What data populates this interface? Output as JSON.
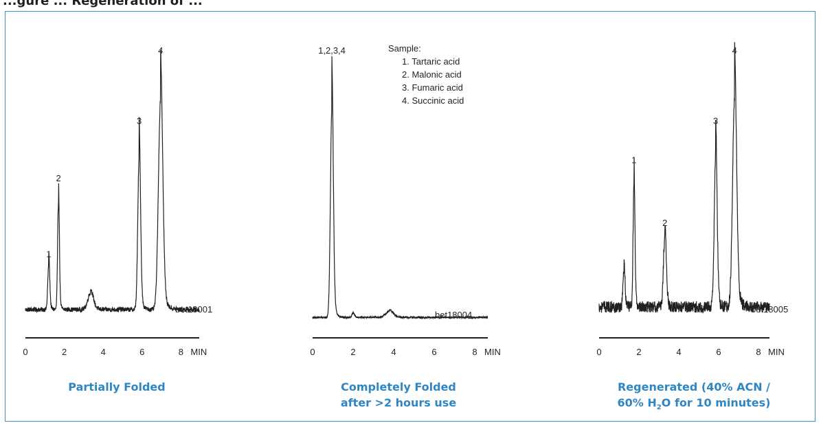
{
  "header_partial": "...gure ... Regeneration of ...",
  "chart_data": [
    {
      "type": "line",
      "title": "",
      "caption": "Partially Folded",
      "xlabel": "MIN",
      "xticks": [
        0,
        2,
        4,
        6,
        8
      ],
      "xlim": [
        0,
        8.7
      ],
      "ylim": [
        0,
        100
      ],
      "tag": "bet18001",
      "baseline": 4,
      "noise": 0.9,
      "peaks": [
        {
          "label": "1",
          "time": 1.2,
          "height": 22,
          "width": 0.05
        },
        {
          "label": "2",
          "time": 1.7,
          "height": 51,
          "width": 0.045
        },
        {
          "label": "",
          "time": 3.35,
          "height": 8,
          "width": 0.14
        },
        {
          "label": "3",
          "time": 5.85,
          "height": 73,
          "width": 0.07
        },
        {
          "label": "4",
          "time": 6.95,
          "height": 100,
          "width": 0.11
        }
      ]
    },
    {
      "type": "line",
      "title": "",
      "caption": "Completely  Folded after >2 hours use",
      "xlabel": "MIN",
      "xticks": [
        0,
        2,
        4,
        6,
        8
      ],
      "xlim": [
        0,
        8.7
      ],
      "ylim": [
        0,
        100
      ],
      "tag": "bet18004",
      "baseline": 1,
      "noise": 0.35,
      "peaks": [
        {
          "label": "1,2,3,4",
          "time": 0.95,
          "height": 100,
          "width": 0.07
        },
        {
          "label": "",
          "time": 2.0,
          "height": 2,
          "width": 0.06
        },
        {
          "label": "",
          "time": 3.8,
          "height": 3,
          "width": 0.18
        }
      ],
      "legend": {
        "title": "Sample:",
        "items": [
          "1. Tartaric acid",
          "2. Malonic acid",
          "3. Fumaric acid",
          "4. Succinic acid"
        ]
      }
    },
    {
      "type": "line",
      "title": "",
      "caption": "Regenerated (40% ACN / 60% H2O for 10 minutes)",
      "xlabel": "MIN",
      "xticks": [
        0,
        2,
        4,
        6,
        8
      ],
      "xlim": [
        0,
        8.7
      ],
      "ylim": [
        0,
        100
      ],
      "tag": "bet18005",
      "baseline": 5,
      "noise": 2.2,
      "peaks": [
        {
          "label": "",
          "time": 1.25,
          "height": 18,
          "width": 0.05
        },
        {
          "label": "1",
          "time": 1.75,
          "height": 58,
          "width": 0.045
        },
        {
          "label": "2",
          "time": 3.3,
          "height": 34,
          "width": 0.07
        },
        {
          "label": "3",
          "time": 5.85,
          "height": 73,
          "width": 0.07
        },
        {
          "label": "4",
          "time": 6.8,
          "height": 100,
          "width": 0.1
        }
      ]
    }
  ],
  "captions": {
    "c1": "Partially Folded",
    "c2_line1": "Completely  Folded",
    "c2_line2": "after >2 hours use",
    "c3_line1": "Regenerated (40% ACN /",
    "c3_line2_a": "60% H",
    "c3_line2_sub": "2",
    "c3_line2_b": "O for 10 minutes)"
  }
}
